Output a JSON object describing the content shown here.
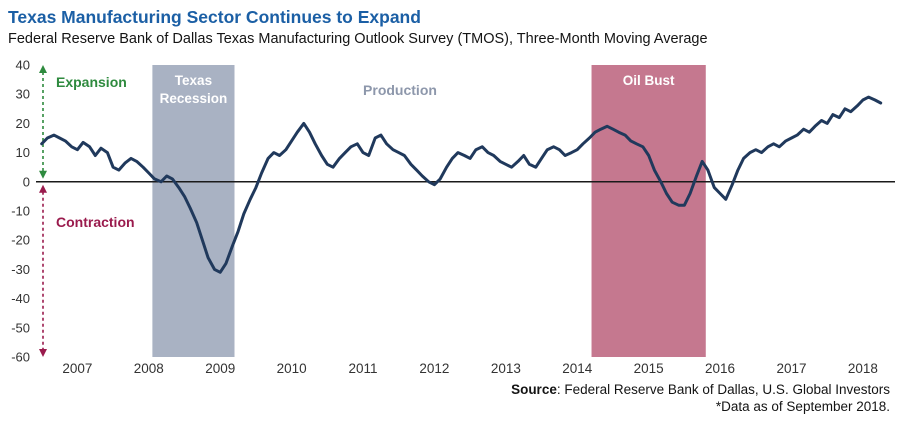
{
  "header": {
    "title": "Texas Manufacturing Sector Continues to Expand",
    "subtitle": "Federal Reserve Bank of Dallas Texas Manufacturing Outlook Survey (TMOS), Three-Month Moving Average"
  },
  "footer": {
    "source_label": "Source",
    "source_rest": ": Federal Reserve Bank of Dallas, U.S. Global Investors",
    "data_note": "*Data as of September 2018."
  },
  "chart_data": {
    "type": "line",
    "title": "Texas Manufacturing Sector Continues to Expand",
    "subtitle": "Federal Reserve Bank of Dallas Texas Manufacturing Outlook Survey (TMOS), Three-Month Moving Average",
    "xlabel": "",
    "ylabel": "",
    "xlim": [
      2006.42,
      2018.45
    ],
    "ylim": [
      -60,
      40
    ],
    "yticks": [
      40,
      30,
      20,
      10,
      0,
      -10,
      -20,
      -30,
      -40,
      -50,
      -60
    ],
    "xticks": [
      2007,
      2008,
      2009,
      2010,
      2011,
      2012,
      2013,
      2014,
      2015,
      2016,
      2017,
      2018
    ],
    "grid": false,
    "zero_line": true,
    "legend_position": "none",
    "series": [
      {
        "name": "Production",
        "color": "#20395c",
        "points": [
          [
            2006.5,
            13
          ],
          [
            2006.58,
            15
          ],
          [
            2006.67,
            16
          ],
          [
            2006.75,
            15
          ],
          [
            2006.83,
            14
          ],
          [
            2006.92,
            12
          ],
          [
            2007.0,
            11
          ],
          [
            2007.08,
            13.5
          ],
          [
            2007.17,
            12
          ],
          [
            2007.25,
            9
          ],
          [
            2007.33,
            11.5
          ],
          [
            2007.42,
            10
          ],
          [
            2007.5,
            5
          ],
          [
            2007.58,
            4
          ],
          [
            2007.67,
            6.5
          ],
          [
            2007.75,
            8
          ],
          [
            2007.83,
            7
          ],
          [
            2007.92,
            5
          ],
          [
            2008.0,
            3
          ],
          [
            2008.08,
            1
          ],
          [
            2008.17,
            0
          ],
          [
            2008.25,
            2
          ],
          [
            2008.33,
            1
          ],
          [
            2008.42,
            -2
          ],
          [
            2008.5,
            -5
          ],
          [
            2008.58,
            -9
          ],
          [
            2008.67,
            -14
          ],
          [
            2008.75,
            -20
          ],
          [
            2008.83,
            -26
          ],
          [
            2008.92,
            -30
          ],
          [
            2009.0,
            -31
          ],
          [
            2009.08,
            -28
          ],
          [
            2009.17,
            -22
          ],
          [
            2009.25,
            -17
          ],
          [
            2009.33,
            -11
          ],
          [
            2009.42,
            -6
          ],
          [
            2009.5,
            -2
          ],
          [
            2009.58,
            3
          ],
          [
            2009.67,
            8
          ],
          [
            2009.75,
            10
          ],
          [
            2009.83,
            9
          ],
          [
            2009.92,
            11
          ],
          [
            2010.0,
            14
          ],
          [
            2010.08,
            17
          ],
          [
            2010.17,
            20
          ],
          [
            2010.25,
            17
          ],
          [
            2010.33,
            13
          ],
          [
            2010.42,
            9
          ],
          [
            2010.5,
            6
          ],
          [
            2010.58,
            5
          ],
          [
            2010.67,
            8
          ],
          [
            2010.75,
            10
          ],
          [
            2010.83,
            12
          ],
          [
            2010.92,
            13
          ],
          [
            2011.0,
            10
          ],
          [
            2011.08,
            9
          ],
          [
            2011.17,
            15
          ],
          [
            2011.25,
            16
          ],
          [
            2011.33,
            13
          ],
          [
            2011.42,
            11
          ],
          [
            2011.5,
            10
          ],
          [
            2011.58,
            9
          ],
          [
            2011.67,
            6
          ],
          [
            2011.75,
            4
          ],
          [
            2011.83,
            2
          ],
          [
            2011.92,
            0
          ],
          [
            2012.0,
            -1
          ],
          [
            2012.08,
            1
          ],
          [
            2012.17,
            5
          ],
          [
            2012.25,
            8
          ],
          [
            2012.33,
            10
          ],
          [
            2012.42,
            9
          ],
          [
            2012.5,
            8
          ],
          [
            2012.58,
            11
          ],
          [
            2012.67,
            12
          ],
          [
            2012.75,
            10
          ],
          [
            2012.83,
            9
          ],
          [
            2012.92,
            7
          ],
          [
            2013.0,
            6
          ],
          [
            2013.08,
            5
          ],
          [
            2013.17,
            7
          ],
          [
            2013.25,
            9
          ],
          [
            2013.33,
            6
          ],
          [
            2013.42,
            5
          ],
          [
            2013.5,
            8
          ],
          [
            2013.58,
            11
          ],
          [
            2013.67,
            12
          ],
          [
            2013.75,
            11
          ],
          [
            2013.83,
            9
          ],
          [
            2013.92,
            10
          ],
          [
            2014.0,
            11
          ],
          [
            2014.08,
            13
          ],
          [
            2014.17,
            15
          ],
          [
            2014.25,
            17
          ],
          [
            2014.33,
            18
          ],
          [
            2014.42,
            19
          ],
          [
            2014.5,
            18
          ],
          [
            2014.58,
            17
          ],
          [
            2014.67,
            16
          ],
          [
            2014.75,
            14
          ],
          [
            2014.83,
            13
          ],
          [
            2014.92,
            12
          ],
          [
            2015.0,
            9
          ],
          [
            2015.08,
            4
          ],
          [
            2015.17,
            0
          ],
          [
            2015.25,
            -4
          ],
          [
            2015.33,
            -7
          ],
          [
            2015.42,
            -8
          ],
          [
            2015.5,
            -8
          ],
          [
            2015.58,
            -4
          ],
          [
            2015.67,
            2
          ],
          [
            2015.75,
            7
          ],
          [
            2015.83,
            4
          ],
          [
            2015.92,
            -2
          ],
          [
            2016.0,
            -4
          ],
          [
            2016.08,
            -6
          ],
          [
            2016.17,
            -1
          ],
          [
            2016.25,
            4
          ],
          [
            2016.33,
            8
          ],
          [
            2016.42,
            10
          ],
          [
            2016.5,
            11
          ],
          [
            2016.58,
            10
          ],
          [
            2016.67,
            12
          ],
          [
            2016.75,
            13
          ],
          [
            2016.83,
            12
          ],
          [
            2016.92,
            14
          ],
          [
            2017.0,
            15
          ],
          [
            2017.08,
            16
          ],
          [
            2017.17,
            18
          ],
          [
            2017.25,
            17
          ],
          [
            2017.33,
            19
          ],
          [
            2017.42,
            21
          ],
          [
            2017.5,
            20
          ],
          [
            2017.58,
            23
          ],
          [
            2017.67,
            22
          ],
          [
            2017.75,
            25
          ],
          [
            2017.83,
            24
          ],
          [
            2017.92,
            26
          ],
          [
            2018.0,
            28
          ],
          [
            2018.08,
            29
          ],
          [
            2018.17,
            28
          ],
          [
            2018.25,
            27
          ]
        ]
      }
    ],
    "bands": [
      {
        "label": "Texas Recession",
        "label_lines": [
          "Texas",
          "Recession"
        ],
        "x0": 2008.05,
        "x1": 2009.2,
        "color": "#a9b2c3",
        "label_color": "#ffffff"
      },
      {
        "label": "Oil Bust",
        "label_lines": [
          "Oil Bust"
        ],
        "x0": 2014.2,
        "x1": 2015.8,
        "color": "#c5788f",
        "label_color": "#ffffff"
      }
    ],
    "annotations": [
      {
        "text": "Expansion",
        "color": "#2e8a3e",
        "kind": "arrow-label",
        "range": [
          0,
          40
        ]
      },
      {
        "text": "Contraction",
        "color": "#9a1b4d",
        "kind": "arrow-label",
        "range": [
          -60,
          0
        ]
      },
      {
        "text": "Production",
        "color": "#8d97ab",
        "kind": "series-label"
      }
    ],
    "axis_text_color": "#333333"
  }
}
